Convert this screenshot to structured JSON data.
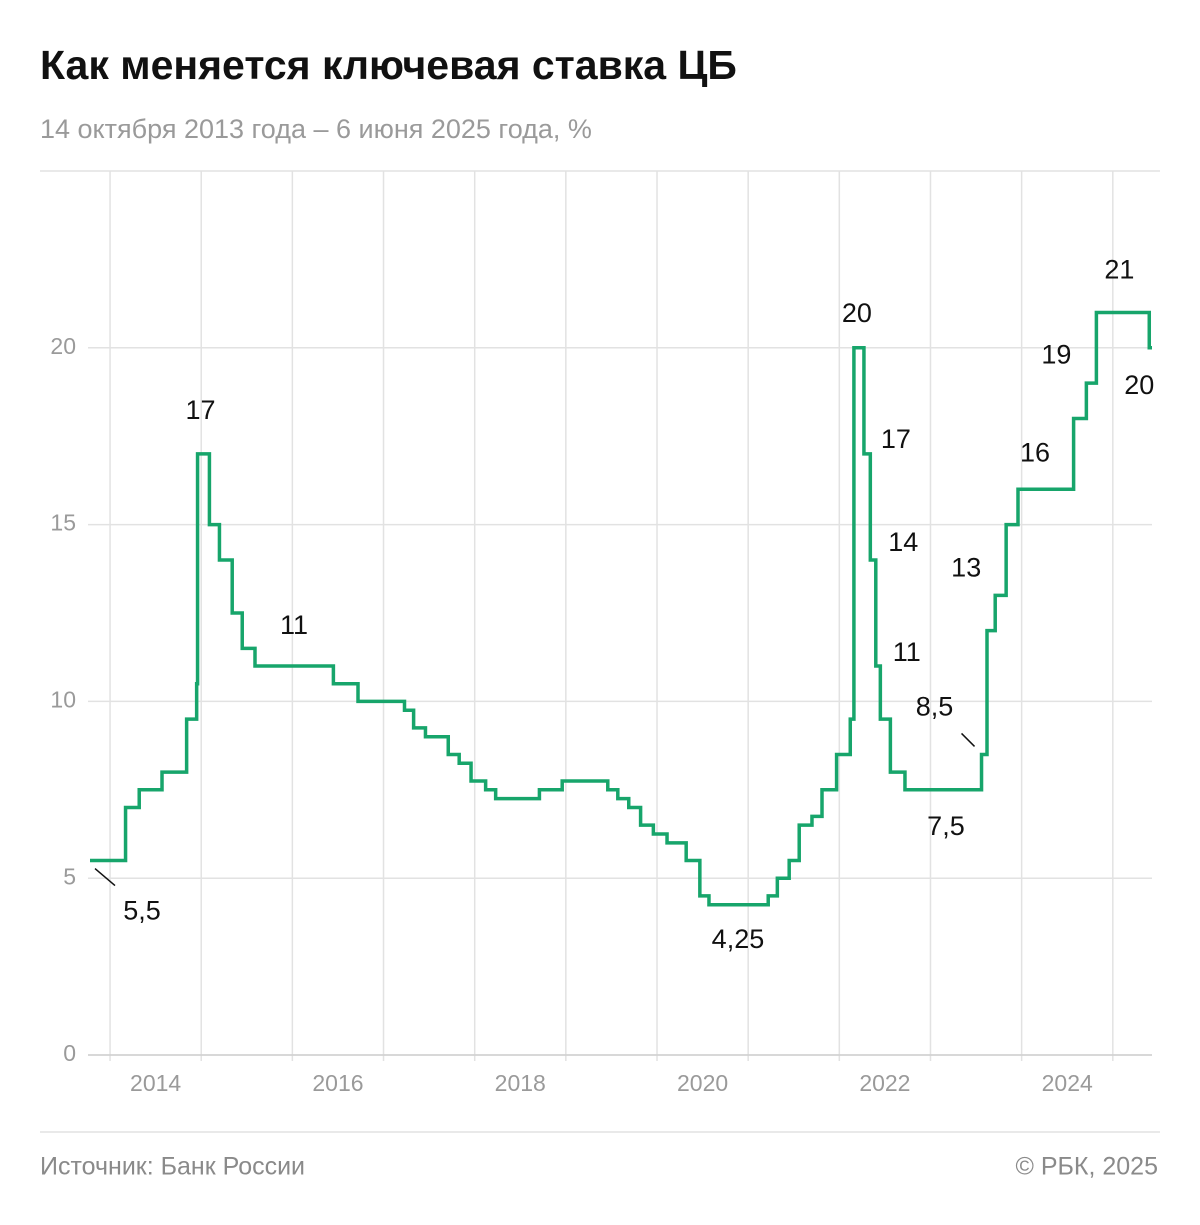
{
  "chart_data": {
    "type": "step",
    "title": "Как меняется ключевая ставка ЦБ",
    "subtitle": "14 октября 2013 года – 6 июня 2025 года, %",
    "source": "Источник: Банк России",
    "credit": "© РБК, 2025",
    "color": "#17a56b",
    "x": [
      2013.78,
      2014.17,
      2014.32,
      2014.57,
      2014.84,
      2014.95,
      2014.96,
      2015.09,
      2015.2,
      2015.34,
      2015.45,
      2015.59,
      2016.45,
      2016.72,
      2017.23,
      2017.33,
      2017.46,
      2017.71,
      2017.83,
      2017.96,
      2018.12,
      2018.23,
      2018.71,
      2018.96,
      2019.46,
      2019.57,
      2019.69,
      2019.82,
      2019.96,
      2020.11,
      2020.32,
      2020.47,
      2020.57,
      2021.22,
      2021.32,
      2021.45,
      2021.56,
      2021.7,
      2021.81,
      2021.97,
      2022.12,
      2022.16,
      2022.27,
      2022.34,
      2022.4,
      2022.45,
      2022.56,
      2022.72,
      2023.56,
      2023.62,
      2023.71,
      2023.83,
      2023.96,
      2024.57,
      2024.71,
      2024.82,
      2025.4
    ],
    "values": [
      5.5,
      7,
      7.5,
      8,
      9.5,
      10.5,
      17,
      15,
      14,
      12.5,
      11.5,
      11,
      10.5,
      10,
      9.75,
      9.25,
      9,
      8.5,
      8.25,
      7.75,
      7.5,
      7.25,
      7.5,
      7.75,
      7.5,
      7.25,
      7,
      6.5,
      6.25,
      6,
      5.5,
      4.5,
      4.25,
      4.5,
      5,
      5.5,
      6.5,
      6.75,
      7.5,
      8.5,
      9.5,
      20,
      17,
      14,
      11,
      9.5,
      8,
      7.5,
      8.5,
      12,
      13,
      15,
      16,
      18,
      19,
      21,
      20
    ],
    "value_labels": [
      "5,5",
      null,
      null,
      null,
      null,
      null,
      "17",
      null,
      null,
      null,
      null,
      "11",
      null,
      null,
      null,
      null,
      null,
      null,
      null,
      null,
      null,
      null,
      null,
      null,
      null,
      null,
      null,
      null,
      null,
      null,
      null,
      null,
      "4,25",
      null,
      null,
      null,
      null,
      null,
      null,
      null,
      null,
      "20",
      "17",
      "14",
      "11",
      null,
      null,
      "7,5",
      "8,5",
      null,
      "13",
      null,
      "16",
      null,
      "19",
      "21",
      "20"
    ],
    "xlim": [
      2013.78,
      2025.43
    ],
    "xticks": [
      {
        "value": 2014.5,
        "label": "2014"
      },
      {
        "value": 2016.5,
        "label": "2016"
      },
      {
        "value": 2018.5,
        "label": "2018"
      },
      {
        "value": 2020.5,
        "label": "2020"
      },
      {
        "value": 2022.5,
        "label": "2022"
      },
      {
        "value": 2024.5,
        "label": "2024"
      }
    ],
    "xgrid": [
      2014,
      2015,
      2016,
      2017,
      2018,
      2019,
      2020,
      2021,
      2022,
      2023,
      2024,
      2025
    ],
    "ylim": [
      0,
      25
    ],
    "yticks": [
      0,
      5,
      10,
      15,
      20
    ],
    "grid": true
  }
}
